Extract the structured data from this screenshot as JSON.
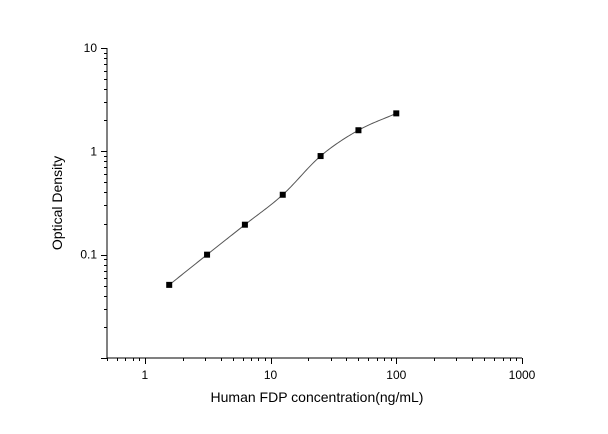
{
  "chart_data": {
    "type": "scatter",
    "title": "",
    "xlabel": "Human FDP concentration(ng/mL)",
    "ylabel": "Optical Density",
    "xscale": "log",
    "yscale": "log",
    "xlim": [
      0.5,
      1000
    ],
    "ylim": [
      0.01,
      10
    ],
    "xticks": [
      1,
      10,
      100,
      1000
    ],
    "xtick_labels": [
      "1",
      "10",
      "100",
      "1000"
    ],
    "yticks": [
      0.1,
      1,
      10
    ],
    "ytick_labels": [
      "0.1",
      "1",
      "10"
    ],
    "grid": false,
    "legend": "none",
    "series": [
      {
        "x": [
          1.5625,
          3.125,
          6.25,
          12.5,
          25,
          50,
          100
        ],
        "y": [
          0.051,
          0.1,
          0.195,
          0.38,
          0.9,
          1.6,
          2.33
        ],
        "marker": "square",
        "color": "#000000",
        "fit_curve": true,
        "curve_color": "#555555"
      }
    ]
  }
}
